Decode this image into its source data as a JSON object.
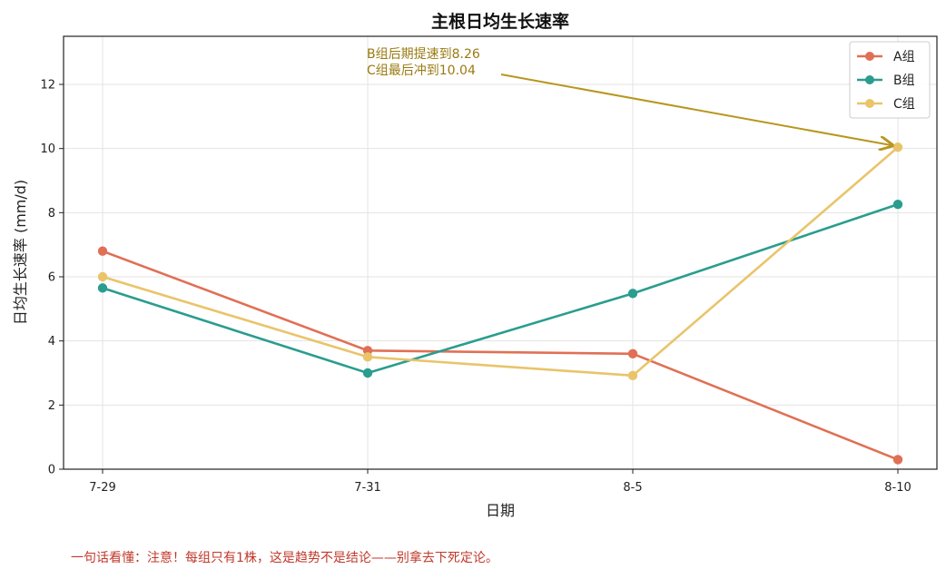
{
  "chart_data": {
    "type": "line",
    "title": "主根日均生长速率",
    "xlabel": "日期",
    "ylabel": "日均生长速率 (mm/d)",
    "categories": [
      "7-29",
      "7-31",
      "8-5",
      "8-10"
    ],
    "ylim": [
      0,
      13.5
    ],
    "yticks": [
      0,
      2,
      4,
      6,
      8,
      10,
      12
    ],
    "grid": true,
    "legend_position": "top-right",
    "series": [
      {
        "name": "A组",
        "color": "#e07055",
        "values": [
          6.8,
          3.7,
          3.6,
          0.3
        ]
      },
      {
        "name": "B组",
        "color": "#2a9d8f",
        "values": [
          5.65,
          3.0,
          5.48,
          8.26
        ]
      },
      {
        "name": "C组",
        "color": "#e9c46a",
        "values": [
          6.0,
          3.5,
          2.92,
          10.04
        ]
      }
    ],
    "annotation": {
      "lines": [
        "B组后期提速到8.26",
        "C组最后冲到10.04"
      ],
      "target_category": "8-10",
      "target_value": 10.04,
      "color": "#b8961e"
    }
  },
  "footnote": "一句话看懂：注意！每组只有1株，这是趋势不是结论——别拿去下死定论。"
}
